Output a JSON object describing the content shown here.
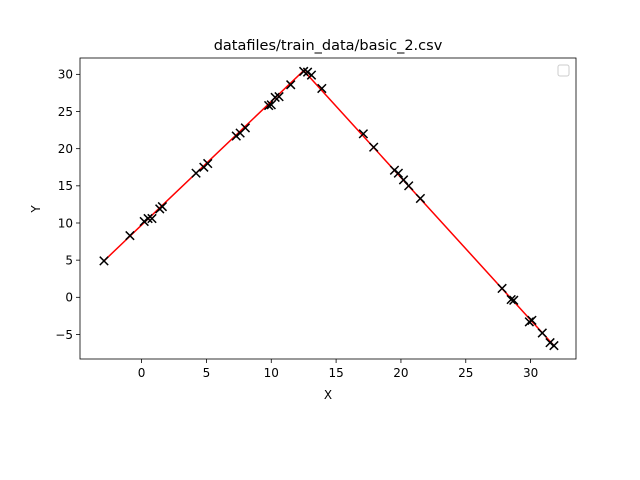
{
  "chart_data": {
    "type": "scatter",
    "title": "datafiles/train_data/basic_2.csv",
    "xlabel": "X",
    "ylabel": "Y",
    "xlim": [
      -4.75,
      33.5
    ],
    "ylim": [
      -8.3,
      32.2
    ],
    "x_ticks": [
      0,
      5,
      10,
      15,
      20,
      25,
      30
    ],
    "y_ticks": [
      -5,
      0,
      5,
      10,
      15,
      20,
      25,
      30
    ],
    "grid": false,
    "legend": {
      "placement": "top-right",
      "entries": []
    },
    "series": [
      {
        "kind": "scatter",
        "marker": "x",
        "color": "#000000",
        "points": [
          [
            -2.9,
            4.9
          ],
          [
            -0.9,
            8.3
          ],
          [
            0.2,
            10.2
          ],
          [
            0.5,
            10.6
          ],
          [
            0.8,
            10.6
          ],
          [
            1.4,
            11.9
          ],
          [
            1.6,
            12.2
          ],
          [
            4.2,
            16.7
          ],
          [
            4.8,
            17.5
          ],
          [
            5.1,
            18.0
          ],
          [
            7.3,
            21.7
          ],
          [
            7.6,
            22.1
          ],
          [
            8.0,
            22.8
          ],
          [
            9.8,
            25.8
          ],
          [
            10.0,
            25.9
          ],
          [
            10.3,
            26.9
          ],
          [
            10.6,
            27.0
          ],
          [
            11.5,
            28.6
          ],
          [
            12.5,
            30.4
          ],
          [
            12.8,
            30.3
          ],
          [
            13.1,
            29.9
          ],
          [
            13.9,
            28.1
          ],
          [
            17.1,
            22.0
          ],
          [
            17.9,
            20.2
          ],
          [
            19.5,
            17.1
          ],
          [
            19.8,
            16.7
          ],
          [
            20.2,
            15.8
          ],
          [
            20.6,
            15.0
          ],
          [
            21.5,
            13.3
          ],
          [
            27.8,
            1.2
          ],
          [
            28.5,
            -0.3
          ],
          [
            28.7,
            -0.4
          ],
          [
            29.9,
            -3.3
          ],
          [
            30.1,
            -3.1
          ],
          [
            30.9,
            -4.8
          ],
          [
            31.5,
            -6.1
          ],
          [
            31.8,
            -6.5
          ]
        ]
      },
      {
        "kind": "line",
        "color": "#ff0000",
        "points": [
          [
            -2.9,
            4.9
          ],
          [
            12.5,
            30.5
          ],
          [
            31.8,
            -6.5
          ]
        ]
      }
    ]
  }
}
